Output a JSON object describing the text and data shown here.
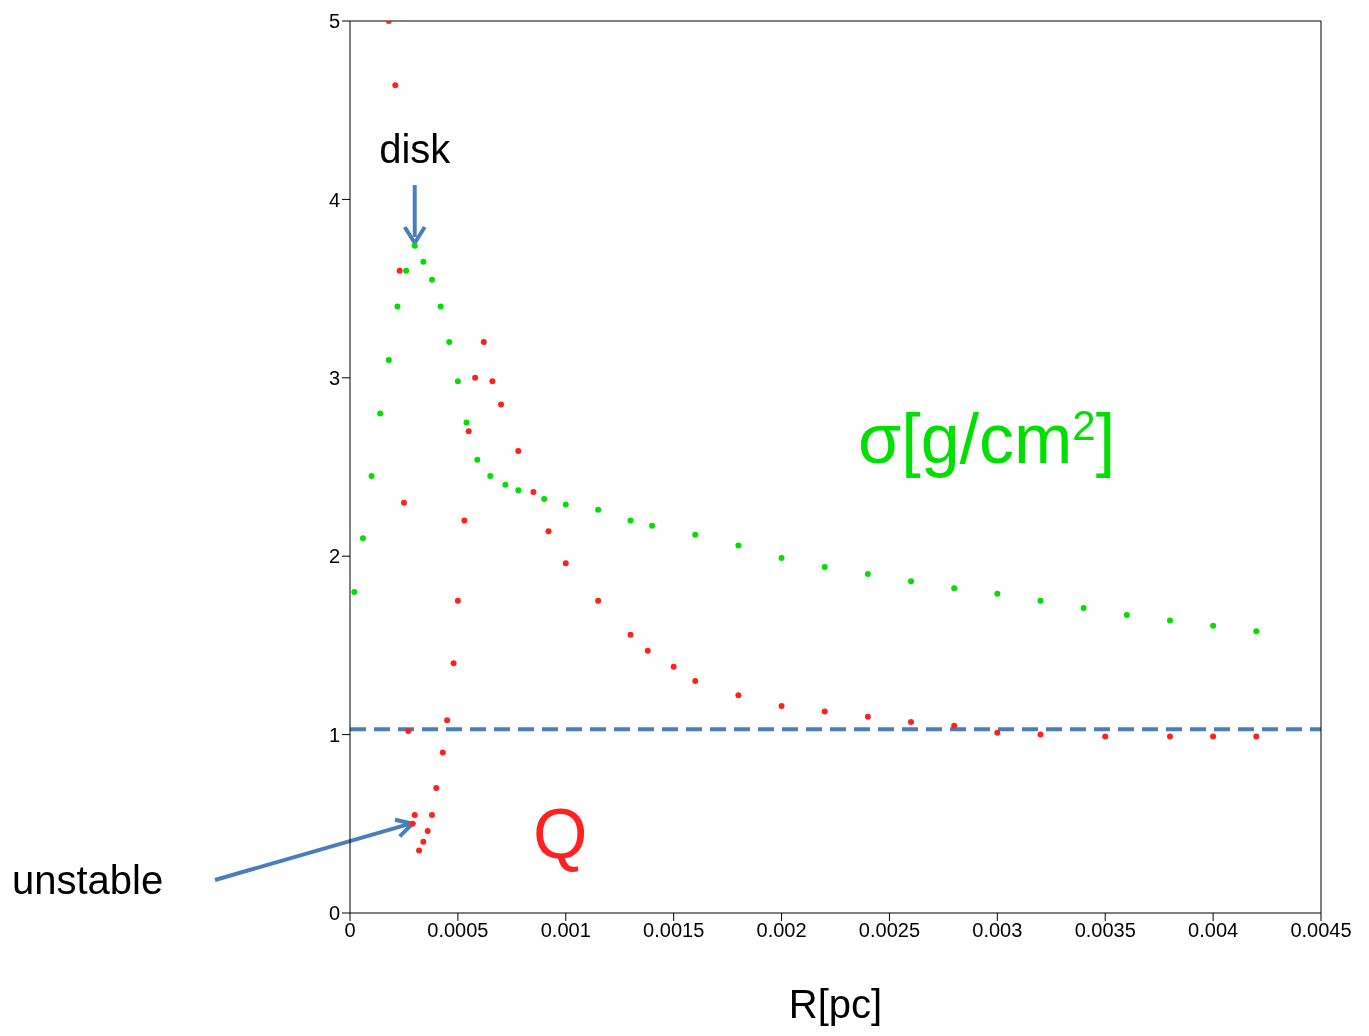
{
  "chart_data": {
    "type": "scatter",
    "xlabel": "R[pc]",
    "xlim": [
      0,
      0.0045
    ],
    "xticks": [
      0,
      0.0005,
      0.001,
      0.0015,
      0.002,
      0.0025,
      0.003,
      0.0035,
      0.004,
      0.0045
    ],
    "ylim": [
      0,
      5
    ],
    "yticks": [
      0,
      1,
      2,
      3,
      4,
      5
    ],
    "marker": "circle",
    "series": [
      {
        "name": "σ[g/cm$^{2}$]",
        "color": "#00e000",
        "x": [
          2e-05,
          6e-05,
          0.0001,
          0.00014,
          0.00018,
          0.00022,
          0.00026,
          0.0003,
          0.00034,
          0.00038,
          0.00042,
          0.00046,
          0.0005,
          0.00054,
          0.00059,
          0.00065,
          0.00072,
          0.00078,
          0.0009,
          0.001,
          0.00115,
          0.0013,
          0.0014,
          0.0016,
          0.0018,
          0.002,
          0.0022,
          0.0024,
          0.0026,
          0.0028,
          0.003,
          0.0032,
          0.0034,
          0.0036,
          0.0038,
          0.004,
          0.0042
        ],
        "values": [
          1.8,
          2.1,
          2.45,
          2.8,
          3.1,
          3.4,
          3.6,
          3.74,
          3.65,
          3.55,
          3.4,
          3.2,
          2.98,
          2.75,
          2.54,
          2.45,
          2.4,
          2.37,
          2.32,
          2.29,
          2.26,
          2.2,
          2.17,
          2.12,
          2.06,
          1.99,
          1.94,
          1.9,
          1.86,
          1.82,
          1.79,
          1.75,
          1.71,
          1.67,
          1.64,
          1.61,
          1.58
        ]
      },
      {
        "name": "Q",
        "color": "#ff2020",
        "x": [
          0.00018,
          0.00021,
          0.00023,
          0.00025,
          0.00027,
          0.00029,
          0.0003,
          0.00032,
          0.00034,
          0.00036,
          0.00038,
          0.0004,
          0.00043,
          0.00045,
          0.00048,
          0.0005,
          0.00053,
          0.00055,
          0.00058,
          0.00062,
          0.00066,
          0.0007,
          0.00078,
          0.00085,
          0.00092,
          0.001,
          0.00115,
          0.0013,
          0.00138,
          0.0015,
          0.0016,
          0.0018,
          0.002,
          0.0022,
          0.0024,
          0.0026,
          0.0028,
          0.003,
          0.0032,
          0.0035,
          0.0038,
          0.004,
          0.0042
        ],
        "values": [
          5.0,
          4.64,
          3.6,
          2.3,
          1.02,
          0.5,
          0.55,
          0.35,
          0.4,
          0.46,
          0.55,
          0.7,
          0.9,
          1.08,
          1.4,
          1.75,
          2.2,
          2.7,
          3.0,
          3.2,
          2.98,
          2.85,
          2.59,
          2.36,
          2.14,
          1.96,
          1.75,
          1.56,
          1.47,
          1.38,
          1.3,
          1.22,
          1.16,
          1.13,
          1.1,
          1.07,
          1.05,
          1.01,
          1.0,
          0.99,
          0.99,
          0.99,
          0.99
        ]
      }
    ],
    "ref_lines": [
      {
        "axis": "y",
        "value": 1.03,
        "color": "#4a7ebb",
        "line_style": "dashed"
      }
    ],
    "annotations": [
      {
        "text": "disk",
        "x": 0.0003,
        "y": 3.74
      },
      {
        "text": "unstable",
        "x": 0.00029,
        "y": 0.5
      }
    ]
  }
}
